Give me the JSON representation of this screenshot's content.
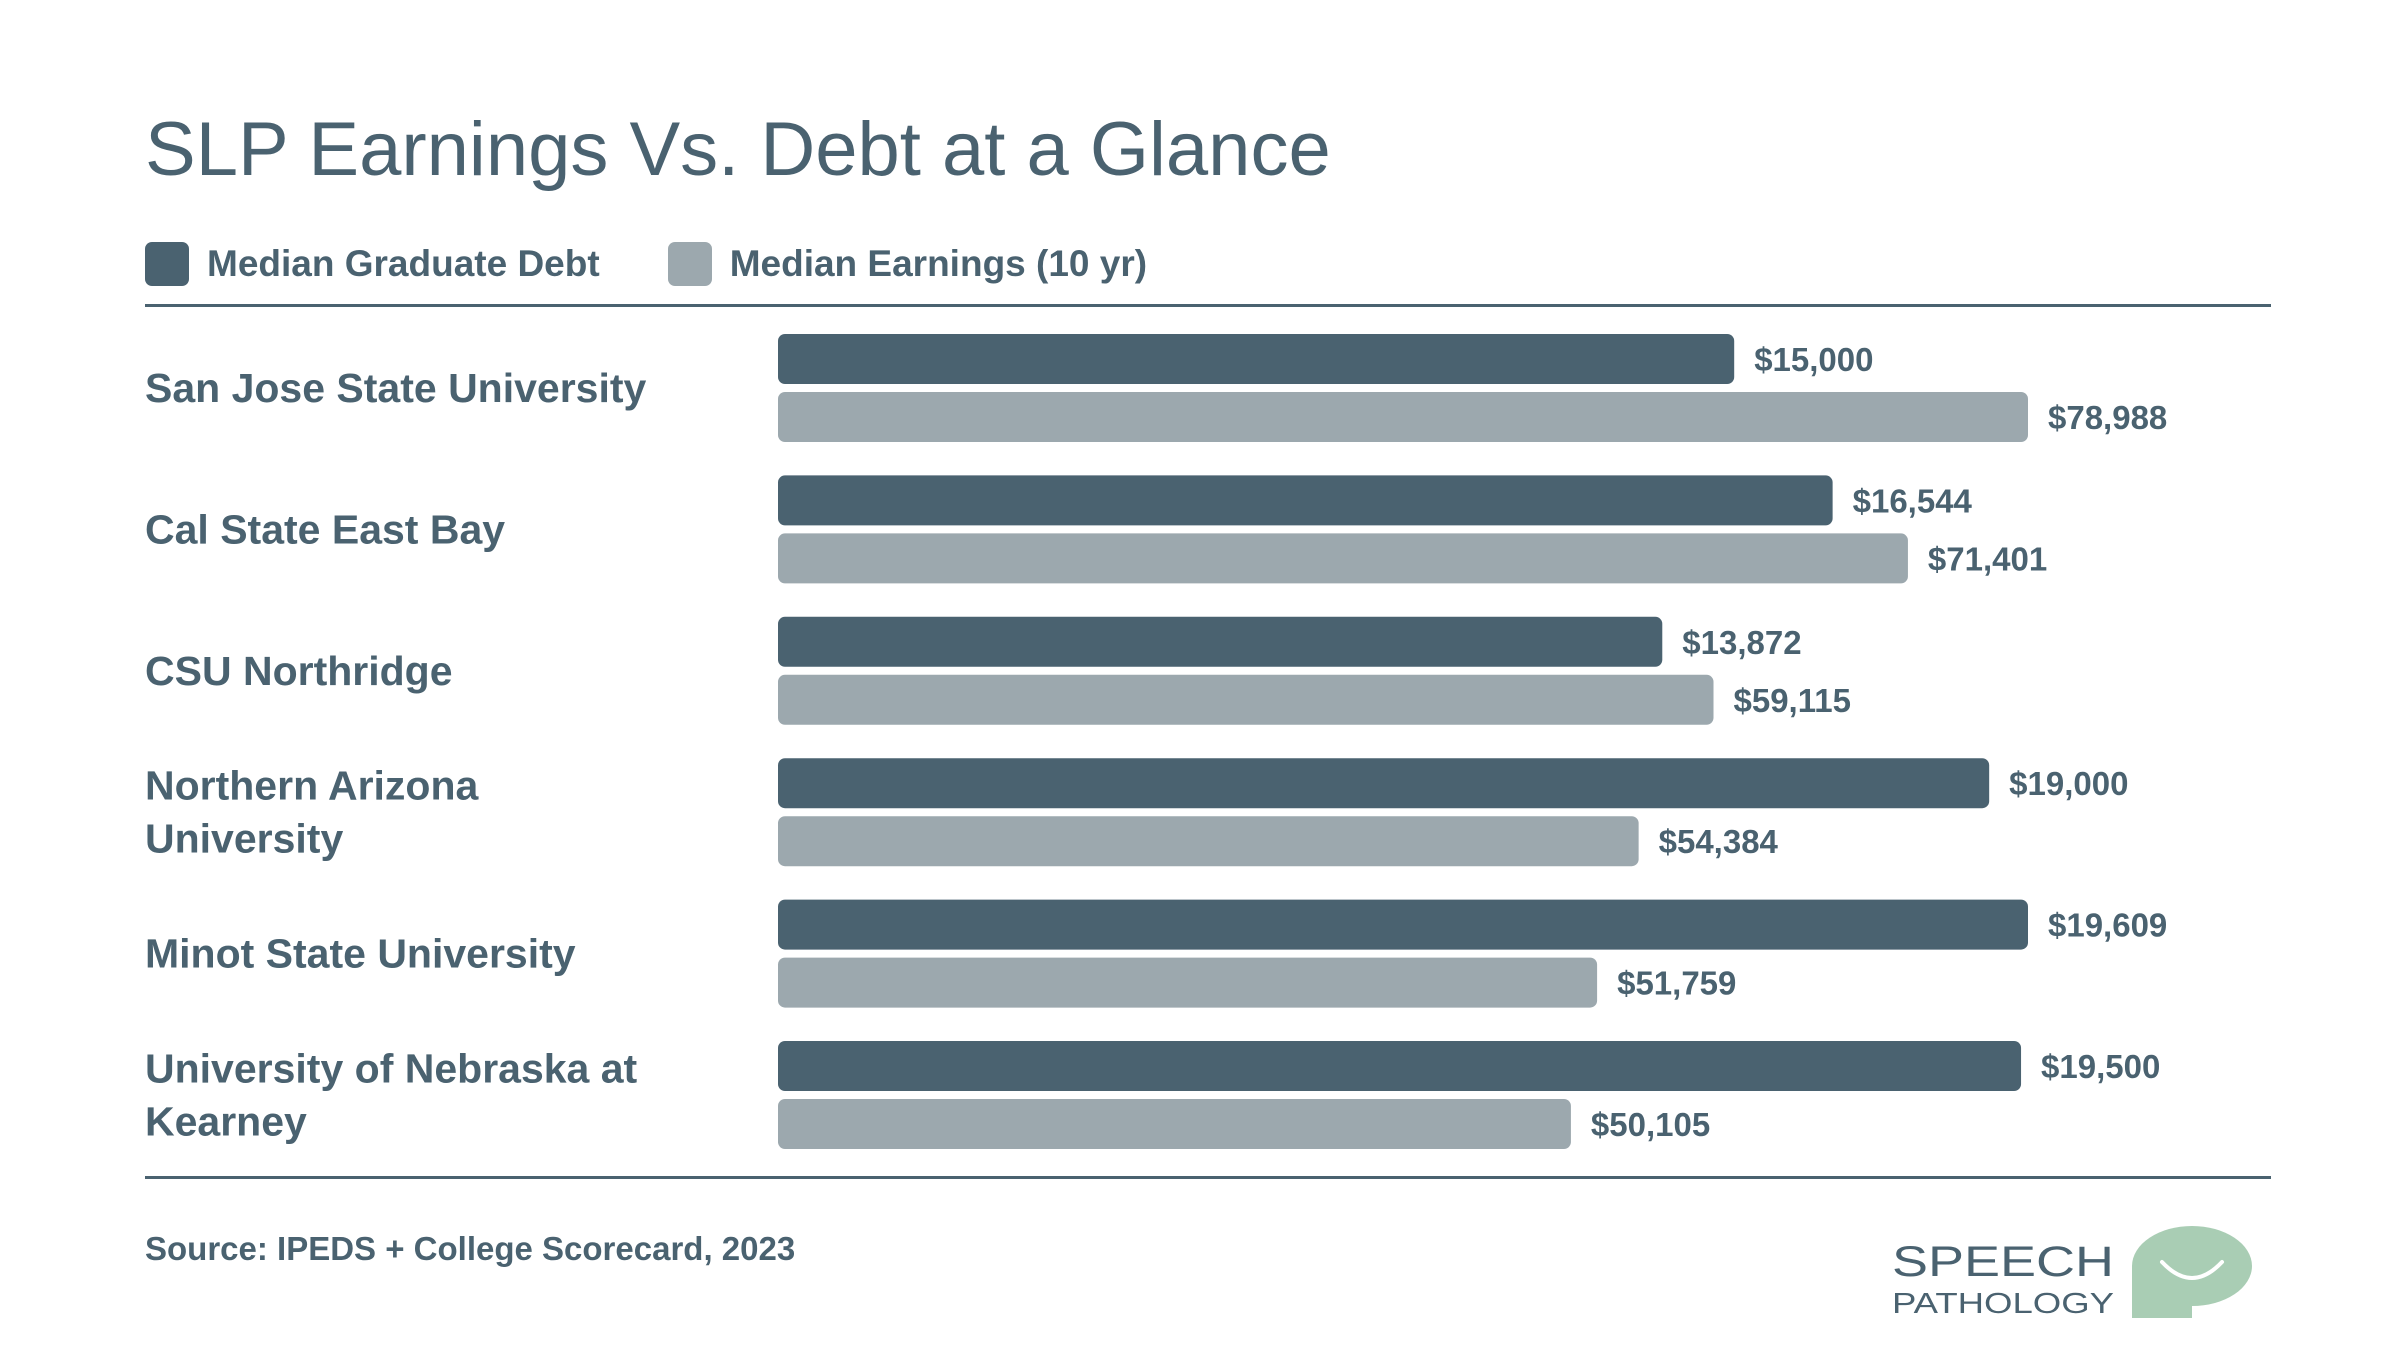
{
  "title": "SLP Earnings Vs. Debt at a Glance",
  "source": "Source: IPEDS + College Scorecard, 2023",
  "logo": {
    "line1": "SPEECH",
    "line2": "PATHOLOGY",
    "icon": "speech-bubble-smile-icon",
    "color": "#a9cdb4"
  },
  "colors": {
    "debt": "#4a6270",
    "earnings": "#9ca8ae",
    "text": "#4a6270"
  },
  "chart_data": {
    "type": "bar",
    "orientation": "horizontal",
    "title": "SLP Earnings Vs. Debt at a Glance",
    "legend_position": "top-left",
    "grid": false,
    "categories": [
      [
        "San Jose State University"
      ],
      [
        "Cal State East Bay"
      ],
      [
        "CSU Northridge"
      ],
      [
        "Northern Arizona",
        "University"
      ],
      [
        "Minot State University"
      ],
      [
        "University of Nebraska at",
        "Kearney"
      ]
    ],
    "series": [
      {
        "name": "Median Graduate Debt",
        "color": "#4a6270",
        "values": [
          15000,
          16544,
          13872,
          19000,
          19609,
          19500
        ],
        "labels": [
          "$15,000",
          "$16,544",
          "$13,872",
          "$19,000",
          "$19,609",
          "$19,500"
        ],
        "axis_max": 19609
      },
      {
        "name": "Median Earnings (10 yr)",
        "color": "#9ca8ae",
        "values": [
          78988,
          71401,
          59115,
          54384,
          51759,
          50105
        ],
        "labels": [
          "$78,988",
          "$71,401",
          "$59,115",
          "$54,384",
          "$51,759",
          "$50,105"
        ],
        "axis_max": 78988
      }
    ]
  }
}
